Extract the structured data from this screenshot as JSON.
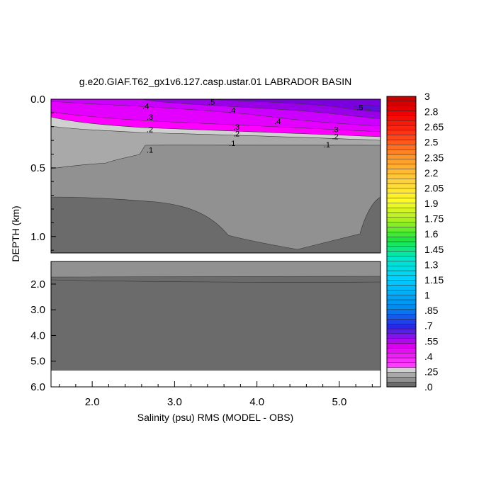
{
  "chart_data": {
    "type": "contour",
    "title": "g.e20.GIAF.T62_gx1v6.127.casp.ustar.01 LABRADOR BASIN",
    "xlabel": "Salinity (psu) RMS (MODEL - OBS)",
    "ylabel": "DEPTH (km)",
    "xlim": [
      1.5,
      5.5
    ],
    "x_ticks": [
      "2.0",
      "3.0",
      "4.0",
      "5.0"
    ],
    "upper_panel": {
      "ylim": [
        0.0,
        1.12
      ],
      "y_ticks": [
        "0.0",
        "0.5",
        "1.0"
      ]
    },
    "lower_panel": {
      "ylim": [
        1.12,
        6.0
      ],
      "y_ticks": [
        "2.0",
        "3.0",
        "4.0",
        "5.0",
        "6.0"
      ]
    },
    "colorbar": {
      "labels": [
        "3",
        "2.8",
        "2.65",
        "2.5",
        "2.35",
        "2.2",
        "2.05",
        "1.9",
        "1.75",
        "1.6",
        "1.45",
        "1.3",
        "1.15",
        "1",
        ".85",
        ".7",
        ".55",
        ".4",
        ".25",
        ".0"
      ],
      "range": [
        0,
        3
      ],
      "interval": 0.05
    },
    "contour_labels": [
      {
        "text": ".5",
        "x": 3.45,
        "d": 0.02
      },
      {
        "text": ".5",
        "x": 5.25,
        "d": 0.06
      },
      {
        "text": ".4",
        "x": 2.65,
        "d": 0.05
      },
      {
        "text": ".4",
        "x": 3.7,
        "d": 0.08
      },
      {
        "text": ".4",
        "x": 4.25,
        "d": 0.16
      },
      {
        "text": ".3",
        "x": 2.7,
        "d": 0.13
      },
      {
        "text": ".3",
        "x": 3.75,
        "d": 0.2
      },
      {
        "text": ".3",
        "x": 4.95,
        "d": 0.22
      },
      {
        "text": ".2",
        "x": 2.7,
        "d": 0.22
      },
      {
        "text": ".2",
        "x": 3.75,
        "d": 0.25
      },
      {
        "text": ".2",
        "x": 4.95,
        "d": 0.27
      },
      {
        "text": ".1",
        "x": 2.7,
        "d": 0.37
      },
      {
        "text": ".1",
        "x": 3.7,
        "d": 0.32
      },
      {
        "text": ".1",
        "x": 4.85,
        "d": 0.33
      }
    ],
    "bottom_depth_km": 5.35,
    "grid": false,
    "legend": "colorbar-right"
  }
}
